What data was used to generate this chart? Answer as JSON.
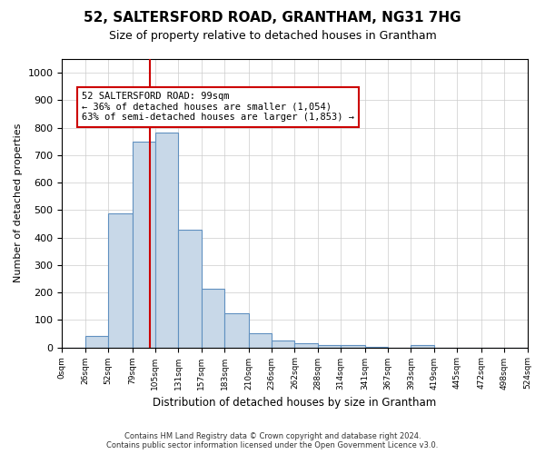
{
  "title": "52, SALTERSFORD ROAD, GRANTHAM, NG31 7HG",
  "subtitle": "Size of property relative to detached houses in Grantham",
  "xlabel": "Distribution of detached houses by size in Grantham",
  "ylabel": "Number of detached properties",
  "bin_edges": [
    0,
    26,
    52,
    79,
    105,
    131,
    157,
    183,
    210,
    236,
    262,
    288,
    314,
    341,
    367,
    393,
    419,
    445,
    472,
    498,
    524
  ],
  "bar_heights": [
    0,
    40,
    487,
    750,
    783,
    430,
    215,
    125,
    50,
    25,
    15,
    10,
    10,
    3,
    0,
    10,
    0,
    0,
    0,
    0
  ],
  "bar_color": "#c8d8e8",
  "bar_edge_color": "#6090c0",
  "property_size": 99,
  "vline_color": "#cc0000",
  "annotation_text": "52 SALTERSFORD ROAD: 99sqm\n← 36% of detached houses are smaller (1,054)\n63% of semi-detached houses are larger (1,853) →",
  "annotation_box_color": "#ffffff",
  "annotation_box_edge": "#cc0000",
  "ylim": [
    0,
    1050
  ],
  "yticks": [
    0,
    100,
    200,
    300,
    400,
    500,
    600,
    700,
    800,
    900,
    1000
  ],
  "footer_line1": "Contains HM Land Registry data © Crown copyright and database right 2024.",
  "footer_line2": "Contains public sector information licensed under the Open Government Licence v3.0.",
  "bg_color": "#ffffff",
  "grid_color": "#cccccc"
}
